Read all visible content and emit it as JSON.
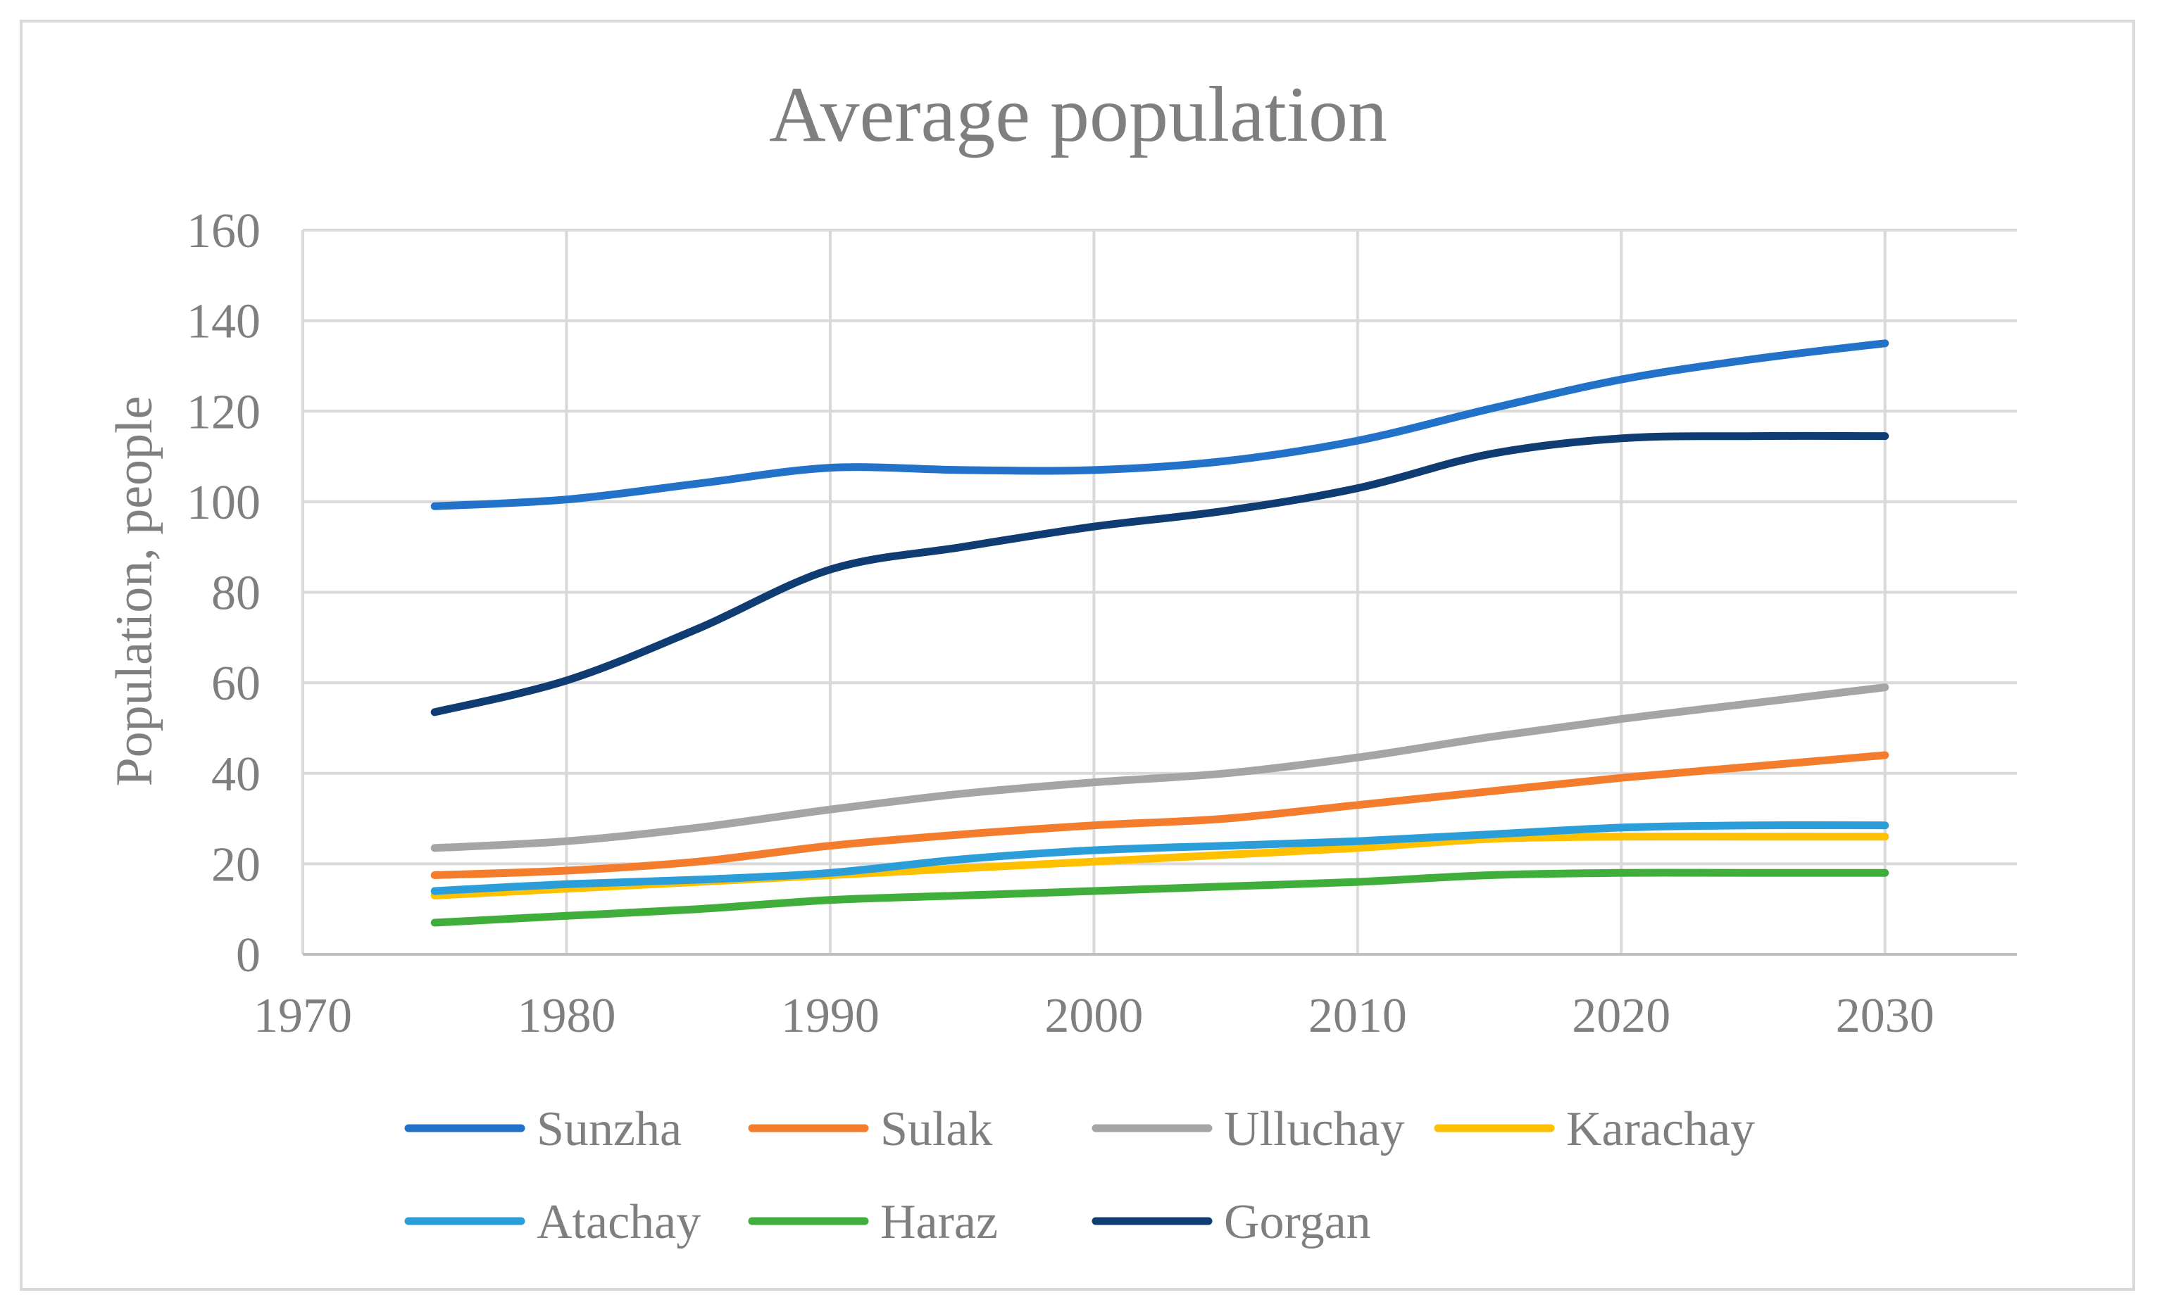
{
  "chart_data": {
    "type": "line",
    "title": "Average population",
    "xlabel": "",
    "ylabel": "Population, people",
    "xlim": [
      1970,
      2035
    ],
    "ylim": [
      0,
      160
    ],
    "x_ticks": [
      1970,
      1980,
      1990,
      2000,
      2010,
      2020,
      2030
    ],
    "y_ticks": [
      0,
      20,
      40,
      60,
      80,
      100,
      120,
      140,
      160
    ],
    "grid": true,
    "legend_position": "bottom",
    "x": [
      1975,
      1980,
      1985,
      1990,
      1995,
      2000,
      2005,
      2010,
      2015,
      2020,
      2025,
      2030
    ],
    "series": [
      {
        "name": "Sunzha",
        "color": "#2372c9",
        "values": [
          99,
          100.5,
          104,
          107.5,
          107,
          107,
          109,
          113.5,
          120.5,
          127,
          131.5,
          135
        ]
      },
      {
        "name": "Sulak",
        "color": "#f47c2d",
        "values": [
          17.5,
          18.5,
          20.5,
          24,
          26.5,
          28.5,
          30,
          33,
          36,
          39,
          41.5,
          44
        ]
      },
      {
        "name": "Ulluchay",
        "color": "#a5a5a5",
        "values": [
          23.5,
          25,
          28,
          32,
          35.5,
          38,
          40,
          43.5,
          48,
          52,
          55.5,
          59
        ]
      },
      {
        "name": "Karachay",
        "color": "#ffc000",
        "values": [
          13,
          14.5,
          16,
          17.5,
          19,
          20.5,
          22,
          23.5,
          25.5,
          26,
          26,
          26
        ]
      },
      {
        "name": "Atachay",
        "color": "#2b9ed9",
        "values": [
          14,
          15.5,
          16.5,
          18,
          21,
          23,
          24,
          25,
          26.5,
          28,
          28.5,
          28.5
        ]
      },
      {
        "name": "Haraz",
        "color": "#3fae3a",
        "values": [
          7,
          8.5,
          10,
          12,
          13,
          14,
          15,
          16,
          17.5,
          18,
          18,
          18
        ]
      },
      {
        "name": "Gorgan",
        "color": "#0f3d73",
        "values": [
          53.5,
          60.5,
          72,
          85,
          90,
          94.5,
          98,
          103,
          110.5,
          114,
          114.5,
          114.5
        ]
      }
    ]
  }
}
